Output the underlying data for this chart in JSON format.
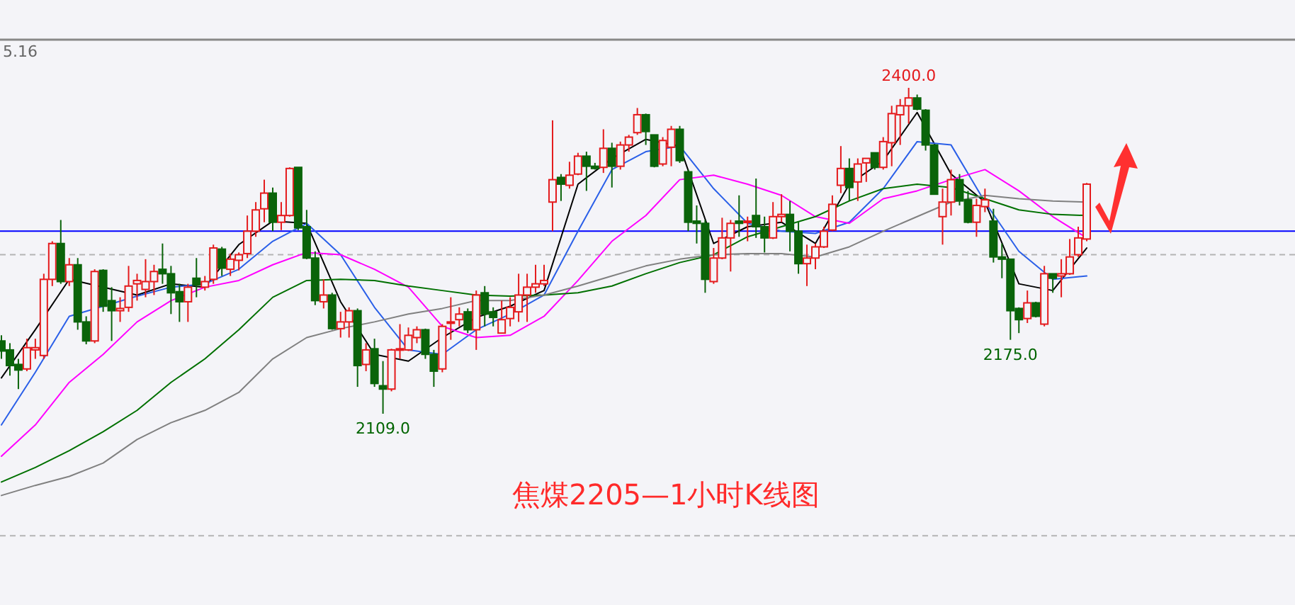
{
  "chart_data": {
    "type": "candlestick",
    "title": "焦煤2205—1小时K线图",
    "categories": [
      null,
      null,
      null,
      null,
      null,
      null,
      null,
      null,
      null,
      null,
      null,
      null,
      null,
      null,
      null,
      null,
      null,
      null,
      null,
      null,
      null,
      null,
      null,
      null,
      null,
      null,
      null,
      null,
      null,
      null,
      null,
      null,
      null,
      null,
      null,
      null,
      null,
      null,
      null,
      null,
      null,
      null,
      null,
      null,
      null,
      null,
      null,
      null,
      null,
      null,
      null,
      null,
      null,
      null,
      null,
      null,
      null,
      null,
      null,
      null,
      null,
      null,
      null,
      null,
      null,
      null,
      null,
      null,
      null,
      null,
      null,
      null,
      null,
      null,
      null,
      null,
      null,
      null,
      null,
      null,
      null,
      null,
      null,
      null,
      null,
      null,
      null,
      null,
      null,
      null,
      null,
      null,
      null,
      null,
      null,
      null,
      null,
      null,
      null,
      null,
      null,
      null,
      null,
      null,
      null,
      null,
      null,
      null,
      null,
      null,
      null,
      null,
      null,
      null,
      null,
      null,
      null,
      null,
      null,
      null,
      null,
      null,
      null,
      null,
      null,
      null,
      null,
      null,
      null
    ],
    "ohlc": [
      [
        2174,
        2179,
        2158,
        2165
      ],
      [
        2166,
        2172,
        2143,
        2152
      ],
      [
        2153,
        2158,
        2131,
        2148
      ],
      [
        2149,
        2176,
        2147,
        2168
      ],
      [
        2166,
        2176,
        2158,
        2168
      ],
      [
        2161,
        2234,
        2158,
        2229
      ],
      [
        2229,
        2263,
        2223,
        2261
      ],
      [
        2261,
        2282,
        2225,
        2227
      ],
      [
        2227,
        2248,
        2223,
        2242
      ],
      [
        2242,
        2248,
        2184,
        2191
      ],
      [
        2191,
        2196,
        2171,
        2174
      ],
      [
        2174,
        2238,
        2172,
        2236
      ],
      [
        2237,
        2238,
        2200,
        2205
      ],
      [
        2210,
        2222,
        2174,
        2201
      ],
      [
        2201,
        2213,
        2191,
        2203
      ],
      [
        2204,
        2241,
        2200,
        2223
      ],
      [
        2225,
        2234,
        2210,
        2228
      ],
      [
        2220,
        2247,
        2213,
        2227
      ],
      [
        2227,
        2242,
        2215,
        2236
      ],
      [
        2238,
        2261,
        2225,
        2234
      ],
      [
        2234,
        2241,
        2198,
        2217
      ],
      [
        2218,
        2225,
        2191,
        2209
      ],
      [
        2209,
        2225,
        2191,
        2222
      ],
      [
        2230,
        2248,
        2213,
        2224
      ],
      [
        2222,
        2232,
        2219,
        2227
      ],
      [
        2229,
        2260,
        2225,
        2257
      ],
      [
        2256,
        2258,
        2232,
        2239
      ],
      [
        2238,
        2252,
        2232,
        2247
      ],
      [
        2246,
        2253,
        2237,
        2251
      ],
      [
        2252,
        2286,
        2248,
        2272
      ],
      [
        2272,
        2298,
        2267,
        2291
      ],
      [
        2292,
        2318,
        2280,
        2306
      ],
      [
        2306,
        2311,
        2272,
        2280
      ],
      [
        2280,
        2298,
        2273,
        2286
      ],
      [
        2286,
        2329,
        2285,
        2328
      ],
      [
        2329,
        2329,
        2273,
        2275
      ],
      [
        2276,
        2291,
        2247,
        2248
      ],
      [
        2248,
        2254,
        2206,
        2210
      ],
      [
        2209,
        2229,
        2203,
        2215
      ],
      [
        2215,
        2217,
        2184,
        2185
      ],
      [
        2185,
        2200,
        2177,
        2191
      ],
      [
        2191,
        2204,
        2177,
        2201
      ],
      [
        2201,
        2203,
        2133,
        2152
      ],
      [
        2153,
        2172,
        2147,
        2166
      ],
      [
        2167,
        2176,
        2133,
        2136
      ],
      [
        2134,
        2156,
        2109,
        2131
      ],
      [
        2131,
        2167,
        2129,
        2166
      ],
      [
        2166,
        2189,
        2158,
        2167
      ],
      [
        2166,
        2186,
        2165,
        2179
      ],
      [
        2177,
        2187,
        2172,
        2184
      ],
      [
        2184,
        2185,
        2158,
        2162
      ],
      [
        2162,
        2166,
        2133,
        2147
      ],
      [
        2149,
        2189,
        2146,
        2187
      ],
      [
        2190,
        2213,
        2175,
        2191
      ],
      [
        2193,
        2204,
        2187,
        2198
      ],
      [
        2200,
        2203,
        2181,
        2184
      ],
      [
        2184,
        2219,
        2166,
        2215
      ],
      [
        2217,
        2223,
        2187,
        2198
      ],
      [
        2200,
        2204,
        2187,
        2195
      ],
      [
        2181,
        2210,
        2181,
        2193
      ],
      [
        2194,
        2213,
        2187,
        2204
      ],
      [
        2200,
        2234,
        2191,
        2215
      ],
      [
        2215,
        2234,
        2191,
        2222
      ],
      [
        2222,
        2242,
        2217,
        2225
      ],
      [
        2225,
        2242,
        2223,
        2228
      ],
      [
        2298,
        2371,
        2272,
        2318
      ],
      [
        2320,
        2323,
        2299,
        2314
      ],
      [
        2313,
        2334,
        2310,
        2322
      ],
      [
        2323,
        2342,
        2322,
        2339
      ],
      [
        2339,
        2343,
        2308,
        2330
      ],
      [
        2330,
        2333,
        2327,
        2328
      ],
      [
        2329,
        2363,
        2324,
        2346
      ],
      [
        2346,
        2351,
        2311,
        2330
      ],
      [
        2330,
        2352,
        2327,
        2349
      ],
      [
        2349,
        2358,
        2343,
        2356
      ],
      [
        2360,
        2382,
        2358,
        2376
      ],
      [
        2376,
        2377,
        2349,
        2361
      ],
      [
        2358,
        2358,
        2329,
        2330
      ],
      [
        2332,
        2356,
        2330,
        2353
      ],
      [
        2347,
        2366,
        2330,
        2363
      ],
      [
        2363,
        2366,
        2333,
        2335
      ],
      [
        2325,
        2327,
        2272,
        2280
      ],
      [
        2281,
        2295,
        2261,
        2279
      ],
      [
        2279,
        2282,
        2217,
        2229
      ],
      [
        2227,
        2257,
        2225,
        2248
      ],
      [
        2248,
        2284,
        2247,
        2266
      ],
      [
        2266,
        2282,
        2236,
        2279
      ],
      [
        2281,
        2304,
        2267,
        2279
      ],
      [
        2280,
        2285,
        2263,
        2281
      ],
      [
        2286,
        2319,
        2266,
        2276
      ],
      [
        2276,
        2285,
        2253,
        2266
      ],
      [
        2266,
        2298,
        2265,
        2285
      ],
      [
        2285,
        2305,
        2280,
        2287
      ],
      [
        2287,
        2299,
        2254,
        2272
      ],
      [
        2272,
        2280,
        2234,
        2243
      ],
      [
        2243,
        2260,
        2223,
        2248
      ],
      [
        2248,
        2261,
        2238,
        2258
      ],
      [
        2258,
        2276,
        2257,
        2272
      ],
      [
        2273,
        2304,
        2272,
        2296
      ],
      [
        2313,
        2348,
        2306,
        2328
      ],
      [
        2328,
        2337,
        2299,
        2311
      ],
      [
        2316,
        2337,
        2299,
        2332
      ],
      [
        2333,
        2337,
        2316,
        2337
      ],
      [
        2342,
        2342,
        2327,
        2329
      ],
      [
        2329,
        2356,
        2327,
        2352
      ],
      [
        2351,
        2384,
        2330,
        2377
      ],
      [
        2376,
        2390,
        2349,
        2384
      ],
      [
        2384,
        2400,
        2368,
        2391
      ],
      [
        2391,
        2394,
        2380,
        2381
      ],
      [
        2380,
        2381,
        2344,
        2349
      ],
      [
        2349,
        2349,
        2305,
        2305
      ],
      [
        2285,
        2310,
        2260,
        2298
      ],
      [
        2298,
        2327,
        2286,
        2318
      ],
      [
        2318,
        2323,
        2295,
        2299
      ],
      [
        2300,
        2308,
        2279,
        2280
      ],
      [
        2280,
        2301,
        2267,
        2295
      ],
      [
        2294,
        2310,
        2289,
        2300
      ],
      [
        2281,
        2292,
        2244,
        2249
      ],
      [
        2249,
        2261,
        2230,
        2247
      ],
      [
        2247,
        2247,
        2175,
        2201
      ],
      [
        2203,
        2204,
        2181,
        2193
      ],
      [
        2194,
        2219,
        2190,
        2208
      ],
      [
        2208,
        2209,
        2195,
        2196
      ],
      [
        2189,
        2241,
        2187,
        2234
      ],
      [
        2234,
        2234,
        2217,
        2230
      ],
      [
        2232,
        2247,
        2213,
        2234
      ],
      [
        2234,
        2265,
        2233,
        2249
      ],
      [
        2251,
        2276,
        2249,
        2266
      ],
      [
        2265,
        2315,
        2263,
        2314
      ]
    ],
    "colors": [
      "#0a640a",
      "#0a640a",
      "#0a640a",
      "#e41a1c",
      "#e41a1c",
      "#e41a1c",
      "#e41a1c",
      "#0a640a",
      "#e41a1c",
      "#0a640a",
      "#0a640a",
      "#e41a1c",
      "#0a640a",
      "#0a640a",
      "#e41a1c",
      "#e41a1c",
      "#e41a1c",
      "#e41a1c",
      "#e41a1c",
      "#0a640a",
      "#0a640a",
      "#0a640a",
      "#e41a1c",
      "#0a640a",
      "#e41a1c",
      "#e41a1c",
      "#0a640a",
      "#e41a1c",
      "#e41a1c",
      "#e41a1c",
      "#e41a1c",
      "#e41a1c",
      "#0a640a",
      "#e41a1c",
      "#e41a1c",
      "#0a640a",
      "#0a640a",
      "#0a640a",
      "#e41a1c",
      "#0a640a",
      "#e41a1c",
      "#e41a1c",
      "#0a640a",
      "#e41a1c",
      "#0a640a",
      "#0a640a",
      "#e41a1c",
      "#e41a1c",
      "#e41a1c",
      "#e41a1c",
      "#0a640a",
      "#0a640a",
      "#e41a1c",
      "#e41a1c",
      "#e41a1c",
      "#0a640a",
      "#e41a1c",
      "#0a640a",
      "#0a640a",
      "#e41a1c",
      "#e41a1c",
      "#e41a1c",
      "#e41a1c",
      "#e41a1c",
      "#e41a1c",
      "#e41a1c",
      "#0a640a",
      "#e41a1c",
      "#e41a1c",
      "#0a640a",
      "#0a640a",
      "#e41a1c",
      "#0a640a",
      "#e41a1c",
      "#e41a1c",
      "#e41a1c",
      "#0a640a",
      "#0a640a",
      "#e41a1c",
      "#e41a1c",
      "#0a640a",
      "#0a640a",
      "#0a640a",
      "#0a640a",
      "#e41a1c",
      "#e41a1c",
      "#e41a1c",
      "#0a640a",
      "#e41a1c",
      "#0a640a",
      "#0a640a",
      "#e41a1c",
      "#e41a1c",
      "#0a640a",
      "#0a640a",
      "#e41a1c",
      "#e41a1c",
      "#e41a1c",
      "#e41a1c",
      "#e41a1c",
      "#0a640a",
      "#e41a1c",
      "#e41a1c",
      "#0a640a",
      "#e41a1c",
      "#e41a1c",
      "#e41a1c",
      "#e41a1c",
      "#0a640a",
      "#0a640a",
      "#0a640a",
      "#e41a1c",
      "#e41a1c",
      "#0a640a",
      "#0a640a",
      "#e41a1c",
      "#e41a1c",
      "#0a640a",
      "#0a640a",
      "#0a640a",
      "#0a640a",
      "#e41a1c",
      "#0a640a",
      "#e41a1c",
      "#0a640a",
      "#e41a1c",
      "#e41a1c",
      "#e41a1c",
      "#e41a1c"
    ],
    "series": [
      {
        "type": "line",
        "color": "#000000",
        "values": [
          2141,
          null,
          null,
          null,
          2184,
          null,
          null,
          null,
          2229,
          null,
          null,
          null,
          null,
          null,
          null,
          null,
          2215,
          null,
          null,
          null,
          2225,
          null,
          null,
          null,
          2222,
          null,
          null,
          null,
          2260,
          null,
          null,
          null,
          2281,
          null,
          null,
          null,
          2279,
          null,
          null,
          null,
          2209,
          null,
          null,
          null,
          2162,
          null,
          null,
          null,
          2156,
          null,
          null,
          null,
          2177,
          null,
          null,
          null,
          2195,
          null,
          null,
          null,
          2205,
          null,
          null,
          null,
          2219,
          null,
          null,
          null,
          2314,
          null,
          null,
          null,
          2337,
          null,
          null,
          null,
          2354,
          null,
          null,
          null,
          2348,
          null,
          null,
          null,
          2261,
          null,
          null,
          null,
          2276,
          null,
          null,
          null,
          2280,
          null,
          null,
          null,
          2261,
          null,
          null,
          null,
          2314,
          null,
          null,
          null,
          2335,
          null,
          null,
          null,
          2378,
          null,
          null,
          null,
          2323,
          null,
          null,
          null,
          2298,
          null,
          null,
          null,
          2225,
          null,
          null,
          null,
          2219,
          null,
          null,
          null,
          2257
        ]
      },
      {
        "type": "line",
        "color": "#2a5fe8",
        "values": [
          2099,
          null,
          null,
          null,
          2146,
          null,
          null,
          null,
          2196,
          null,
          null,
          null,
          null,
          null,
          null,
          null,
          2214,
          null,
          null,
          null,
          2222,
          null,
          null,
          null,
          2225,
          null,
          null,
          null,
          2238,
          null,
          null,
          null,
          2263,
          null,
          null,
          null,
          2279,
          null,
          null,
          null,
          2251,
          null,
          null,
          null,
          2204,
          null,
          null,
          null,
          2166,
          null,
          null,
          null,
          2162,
          null,
          null,
          null,
          2184,
          null,
          null,
          null,
          2198,
          null,
          null,
          null,
          2215,
          null,
          null,
          null,
          2272,
          null,
          null,
          null,
          2327,
          null,
          null,
          null,
          2343,
          null,
          null,
          null,
          2348,
          null,
          null,
          null,
          2310,
          null,
          null,
          null,
          2279,
          null,
          null,
          null,
          2272,
          null,
          null,
          null,
          2270,
          null,
          null,
          null,
          2280,
          null,
          null,
          null,
          2310,
          null,
          null,
          null,
          2352,
          null,
          null,
          null,
          2349,
          null,
          null,
          null,
          2298,
          null,
          null,
          null,
          2254,
          null,
          null,
          null,
          2229,
          null,
          null,
          null,
          2232
        ]
      },
      {
        "type": "line",
        "color": "#ff00ff",
        "values": [
          2071,
          null,
          null,
          null,
          2099,
          null,
          null,
          null,
          2137,
          null,
          null,
          null,
          2162,
          null,
          null,
          null,
          2191,
          null,
          null,
          null,
          2210,
          null,
          null,
          null,
          2222,
          null,
          null,
          null,
          2228,
          null,
          null,
          null,
          2242,
          null,
          null,
          null,
          2253,
          null,
          null,
          null,
          2251,
          null,
          null,
          null,
          2238,
          null,
          null,
          null,
          2222,
          null,
          null,
          null,
          2187,
          null,
          null,
          null,
          2177,
          null,
          null,
          null,
          2179,
          null,
          null,
          null,
          2196,
          null,
          null,
          null,
          2228,
          null,
          null,
          null,
          2263,
          null,
          null,
          null,
          2286,
          null,
          null,
          null,
          2318,
          null,
          null,
          null,
          2322,
          null,
          null,
          null,
          2314,
          null,
          null,
          null,
          2304,
          null,
          null,
          null,
          2285,
          null,
          null,
          null,
          2279,
          null,
          null,
          null,
          2301,
          null,
          null,
          null,
          2308,
          null,
          null,
          null,
          2318,
          null,
          null,
          null,
          2327,
          null,
          null,
          null,
          2308,
          null,
          null,
          null,
          2285,
          null,
          null,
          null,
          2266
        ]
      },
      {
        "type": "line",
        "color": "#007000",
        "values": [
          2048,
          null,
          null,
          null,
          2061,
          null,
          null,
          null,
          2076,
          null,
          null,
          null,
          2093,
          null,
          null,
          null,
          2112,
          null,
          null,
          null,
          2137,
          null,
          null,
          null,
          2158,
          null,
          null,
          null,
          2184,
          null,
          null,
          null,
          2213,
          null,
          null,
          null,
          2228,
          null,
          null,
          null,
          2229,
          null,
          null,
          null,
          2228,
          null,
          null,
          null,
          2223,
          null,
          null,
          null,
          2219,
          null,
          null,
          null,
          2215,
          null,
          null,
          null,
          2214,
          null,
          null,
          null,
          2215,
          null,
          null,
          null,
          2217,
          null,
          null,
          null,
          2223,
          null,
          null,
          null,
          2234,
          null,
          null,
          null,
          2244,
          null,
          null,
          null,
          2251,
          null,
          null,
          null,
          2267,
          null,
          null,
          null,
          2276,
          null,
          null,
          null,
          2285,
          null,
          null,
          null,
          2299,
          null,
          null,
          null,
          2310,
          null,
          null,
          null,
          2314,
          null,
          null,
          null,
          2311,
          null,
          null,
          null,
          2301,
          null,
          null,
          null,
          2291,
          null,
          null,
          null,
          2287,
          null,
          null,
          null,
          2286
        ]
      },
      {
        "type": "line",
        "color": "#808080",
        "values": [
          2036,
          null,
          null,
          null,
          2045,
          null,
          null,
          null,
          2053,
          null,
          null,
          null,
          2065,
          null,
          null,
          null,
          2086,
          null,
          null,
          null,
          2101,
          null,
          null,
          null,
          2112,
          null,
          null,
          null,
          2128,
          null,
          null,
          null,
          2158,
          null,
          null,
          null,
          2177,
          null,
          null,
          null,
          2185,
          null,
          null,
          null,
          2191,
          null,
          null,
          null,
          2198,
          null,
          null,
          null,
          2203,
          null,
          null,
          null,
          2210,
          null,
          null,
          null,
          2210,
          null,
          null,
          null,
          2215,
          null,
          null,
          null,
          2223,
          null,
          null,
          null,
          2232,
          null,
          null,
          null,
          2241,
          null,
          null,
          null,
          2247,
          null,
          null,
          null,
          2251,
          null,
          null,
          null,
          2252,
          null,
          null,
          null,
          2252,
          null,
          null,
          null,
          2249,
          null,
          null,
          null,
          2258,
          null,
          null,
          null,
          2272,
          null,
          null,
          null,
          2285,
          null,
          null,
          null,
          2298,
          null,
          null,
          null,
          2304,
          null,
          null,
          null,
          2301,
          null,
          null,
          null,
          2299,
          null,
          null,
          null,
          2298
        ]
      }
    ],
    "ref_lines": [
      {
        "axis": "y",
        "value": 2272,
        "color": "#0000ff",
        "line_style": "solid"
      },
      {
        "axis": "y",
        "value": 2251,
        "color": "#b4b4b4",
        "line_style": "dashed"
      },
      {
        "axis": "y",
        "value": 2000,
        "color": "#b4b4b4",
        "line_style": "dashed"
      }
    ],
    "annotations": [
      "5.16",
      {
        "text": "2400.0",
        "y": 2400
      },
      {
        "text": "2109.0",
        "y": 2109
      },
      {
        "text": "2175.0",
        "y": 2175
      }
    ]
  }
}
